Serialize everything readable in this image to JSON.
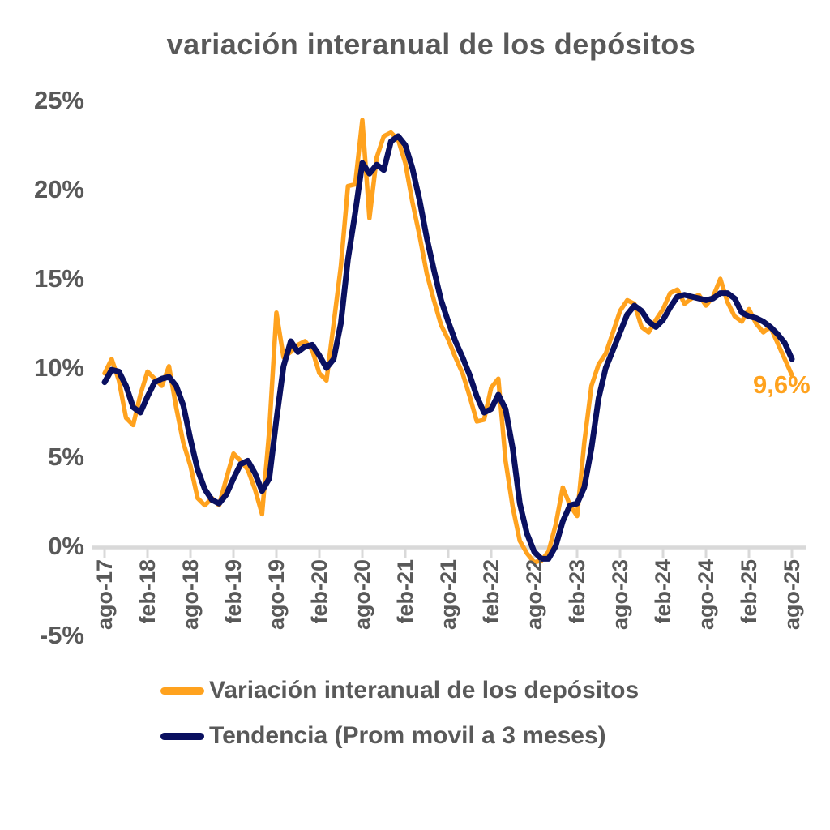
{
  "chart_data": {
    "type": "line",
    "title": "variación interanual de los depósitos",
    "x_start": "ago-17",
    "x_end": "ago-25",
    "frequency": "monthly",
    "x_tick_labels": [
      "ago-17",
      "feb-18",
      "ago-18",
      "feb-19",
      "ago-19",
      "feb-20",
      "ago-20",
      "feb-21",
      "ago-21",
      "feb-22",
      "ago-22",
      "feb-23",
      "ago-23",
      "feb-24",
      "ago-24",
      "feb-25",
      "ago-25"
    ],
    "x_tick_every_n_points": 6,
    "y_ticks_percent": [
      25,
      20,
      15,
      10,
      5,
      0,
      -5
    ],
    "ylim_percent": [
      -5,
      25
    ],
    "grid": false,
    "legend_position": "bottom-left",
    "axis_color": "#D9D9D9",
    "text_color": "#595959",
    "annotation": {
      "text": "9,6%",
      "value_percent": 9.6,
      "at": "ago-25",
      "series": "Variación interanual de los depósitos",
      "color": "#FFA21E"
    },
    "series": [
      {
        "name": "Variación interanual de los depósitos",
        "color": "#FFA21E",
        "values_percent": [
          9.7,
          10.5,
          9.3,
          7.2,
          6.8,
          8.5,
          9.8,
          9.4,
          9.0,
          10.1,
          7.8,
          5.8,
          4.5,
          2.7,
          2.3,
          2.7,
          2.3,
          3.8,
          5.2,
          4.8,
          4.3,
          3.2,
          1.8,
          6.5,
          13.1,
          10.6,
          10.9,
          11.3,
          11.5,
          11.0,
          9.7,
          9.3,
          12.5,
          15.7,
          20.2,
          20.3,
          23.9,
          18.4,
          21.8,
          23.0,
          23.2,
          22.8,
          21.5,
          19.3,
          17.4,
          15.3,
          13.8,
          12.4,
          11.6,
          10.6,
          9.7,
          8.4,
          7.0,
          7.1,
          8.9,
          9.4,
          4.8,
          2.2,
          0.3,
          -0.4,
          -0.9,
          -0.8,
          -0.3,
          1.2,
          3.3,
          2.3,
          1.7,
          5.8,
          9.0,
          10.2,
          10.8,
          12.0,
          13.2,
          13.8,
          13.6,
          12.3,
          12.0,
          12.7,
          13.3,
          14.2,
          14.4,
          13.6,
          13.9,
          14.1,
          13.5,
          14.0,
          15.0,
          13.7,
          12.9,
          12.6,
          13.3,
          12.5,
          12.0,
          12.3,
          11.4,
          10.5,
          9.6
        ]
      },
      {
        "name": "Tendencia (Prom movil a 3 meses)",
        "color": "#0A1060",
        "values_percent": [
          9.2,
          9.9,
          9.8,
          9.0,
          7.8,
          7.5,
          8.4,
          9.2,
          9.4,
          9.5,
          9.0,
          7.9,
          6.0,
          4.3,
          3.2,
          2.6,
          2.4,
          2.9,
          3.8,
          4.6,
          4.8,
          4.1,
          3.1,
          3.8,
          7.1,
          10.1,
          11.5,
          10.9,
          11.2,
          11.3,
          10.7,
          10.0,
          10.5,
          12.5,
          16.1,
          18.7,
          21.5,
          20.9,
          21.4,
          21.1,
          22.7,
          23.0,
          22.5,
          21.2,
          19.4,
          17.3,
          15.5,
          13.8,
          12.6,
          11.5,
          10.6,
          9.6,
          8.4,
          7.5,
          7.7,
          8.5,
          7.7,
          5.5,
          2.4,
          0.7,
          -0.3,
          -0.7,
          -0.7,
          0.0,
          1.4,
          2.3,
          2.4,
          3.3,
          5.5,
          8.3,
          10.0,
          11.0,
          12.0,
          13.0,
          13.5,
          13.2,
          12.6,
          12.3,
          12.7,
          13.4,
          14.0,
          14.1,
          14.0,
          13.9,
          13.8,
          13.9,
          14.2,
          14.2,
          13.9,
          13.1,
          12.9,
          12.8,
          12.6,
          12.3,
          11.9,
          11.4,
          10.5
        ]
      }
    ]
  }
}
